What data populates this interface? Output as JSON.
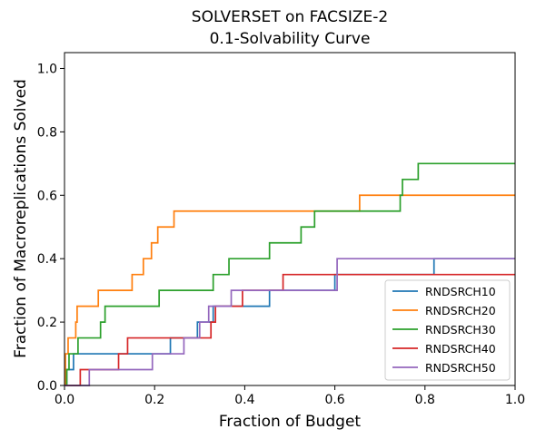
{
  "chart_data": {
    "type": "line",
    "title": "SOLVERSET on FACSIZE-2",
    "subtitle": "0.1-Solvability Curve",
    "xlabel": "Fraction of Budget",
    "ylabel": "Fraction of Macroreplications Solved",
    "xlim": [
      0,
      1
    ],
    "ylim": [
      0,
      1.05
    ],
    "xticks": [
      0.0,
      0.2,
      0.4,
      0.6,
      0.8,
      1.0
    ],
    "yticks": [
      0.0,
      0.2,
      0.4,
      0.6,
      0.8,
      1.0
    ],
    "xtick_labels": [
      "0.0",
      "0.2",
      "0.4",
      "0.6",
      "0.8",
      "1.0"
    ],
    "ytick_labels": [
      "0.0",
      "0.2",
      "0.4",
      "0.6",
      "0.8",
      "1.0"
    ],
    "grid": false,
    "legend_position": "lower-right",
    "series": [
      {
        "name": "RNDSRCH10",
        "color": "#1f77b4",
        "steps": [
          [
            0.0,
            0.0
          ],
          [
            0.005,
            0.05
          ],
          [
            0.02,
            0.1
          ],
          [
            0.235,
            0.15
          ],
          [
            0.295,
            0.2
          ],
          [
            0.33,
            0.25
          ],
          [
            0.41,
            0.25
          ],
          [
            0.455,
            0.3
          ],
          [
            0.6,
            0.35
          ],
          [
            0.82,
            0.4
          ],
          [
            1.0,
            0.4
          ]
        ]
      },
      {
        "name": "RNDSRCH20",
        "color": "#ff7f0e",
        "steps": [
          [
            0.0,
            0.0
          ],
          [
            0.002,
            0.1
          ],
          [
            0.008,
            0.15
          ],
          [
            0.025,
            0.2
          ],
          [
            0.028,
            0.25
          ],
          [
            0.075,
            0.3
          ],
          [
            0.15,
            0.35
          ],
          [
            0.165,
            0.35
          ],
          [
            0.175,
            0.4
          ],
          [
            0.193,
            0.45
          ],
          [
            0.207,
            0.5
          ],
          [
            0.243,
            0.55
          ],
          [
            0.655,
            0.6
          ],
          [
            1.0,
            0.6
          ]
        ]
      },
      {
        "name": "RNDSRCH30",
        "color": "#2ca02c",
        "steps": [
          [
            0.0,
            0.0
          ],
          [
            0.005,
            0.05
          ],
          [
            0.01,
            0.1
          ],
          [
            0.03,
            0.15
          ],
          [
            0.08,
            0.2
          ],
          [
            0.09,
            0.25
          ],
          [
            0.21,
            0.3
          ],
          [
            0.33,
            0.35
          ],
          [
            0.365,
            0.4
          ],
          [
            0.455,
            0.45
          ],
          [
            0.525,
            0.5
          ],
          [
            0.555,
            0.55
          ],
          [
            0.745,
            0.6
          ],
          [
            0.75,
            0.65
          ],
          [
            0.785,
            0.7
          ],
          [
            1.0,
            0.7
          ]
        ]
      },
      {
        "name": "RNDSRCH40",
        "color": "#d62728",
        "steps": [
          [
            0.0,
            0.0
          ],
          [
            0.035,
            0.05
          ],
          [
            0.12,
            0.1
          ],
          [
            0.14,
            0.15
          ],
          [
            0.325,
            0.2
          ],
          [
            0.335,
            0.25
          ],
          [
            0.395,
            0.3
          ],
          [
            0.485,
            0.35
          ],
          [
            1.0,
            0.35
          ]
        ]
      },
      {
        "name": "RNDSRCH50",
        "color": "#9467bd",
        "steps": [
          [
            0.0,
            0.0
          ],
          [
            0.055,
            0.05
          ],
          [
            0.195,
            0.1
          ],
          [
            0.265,
            0.15
          ],
          [
            0.3,
            0.2
          ],
          [
            0.32,
            0.25
          ],
          [
            0.37,
            0.3
          ],
          [
            0.49,
            0.3
          ],
          [
            0.495,
            0.3
          ],
          [
            0.605,
            0.4
          ],
          [
            1.0,
            0.4
          ]
        ]
      }
    ]
  }
}
